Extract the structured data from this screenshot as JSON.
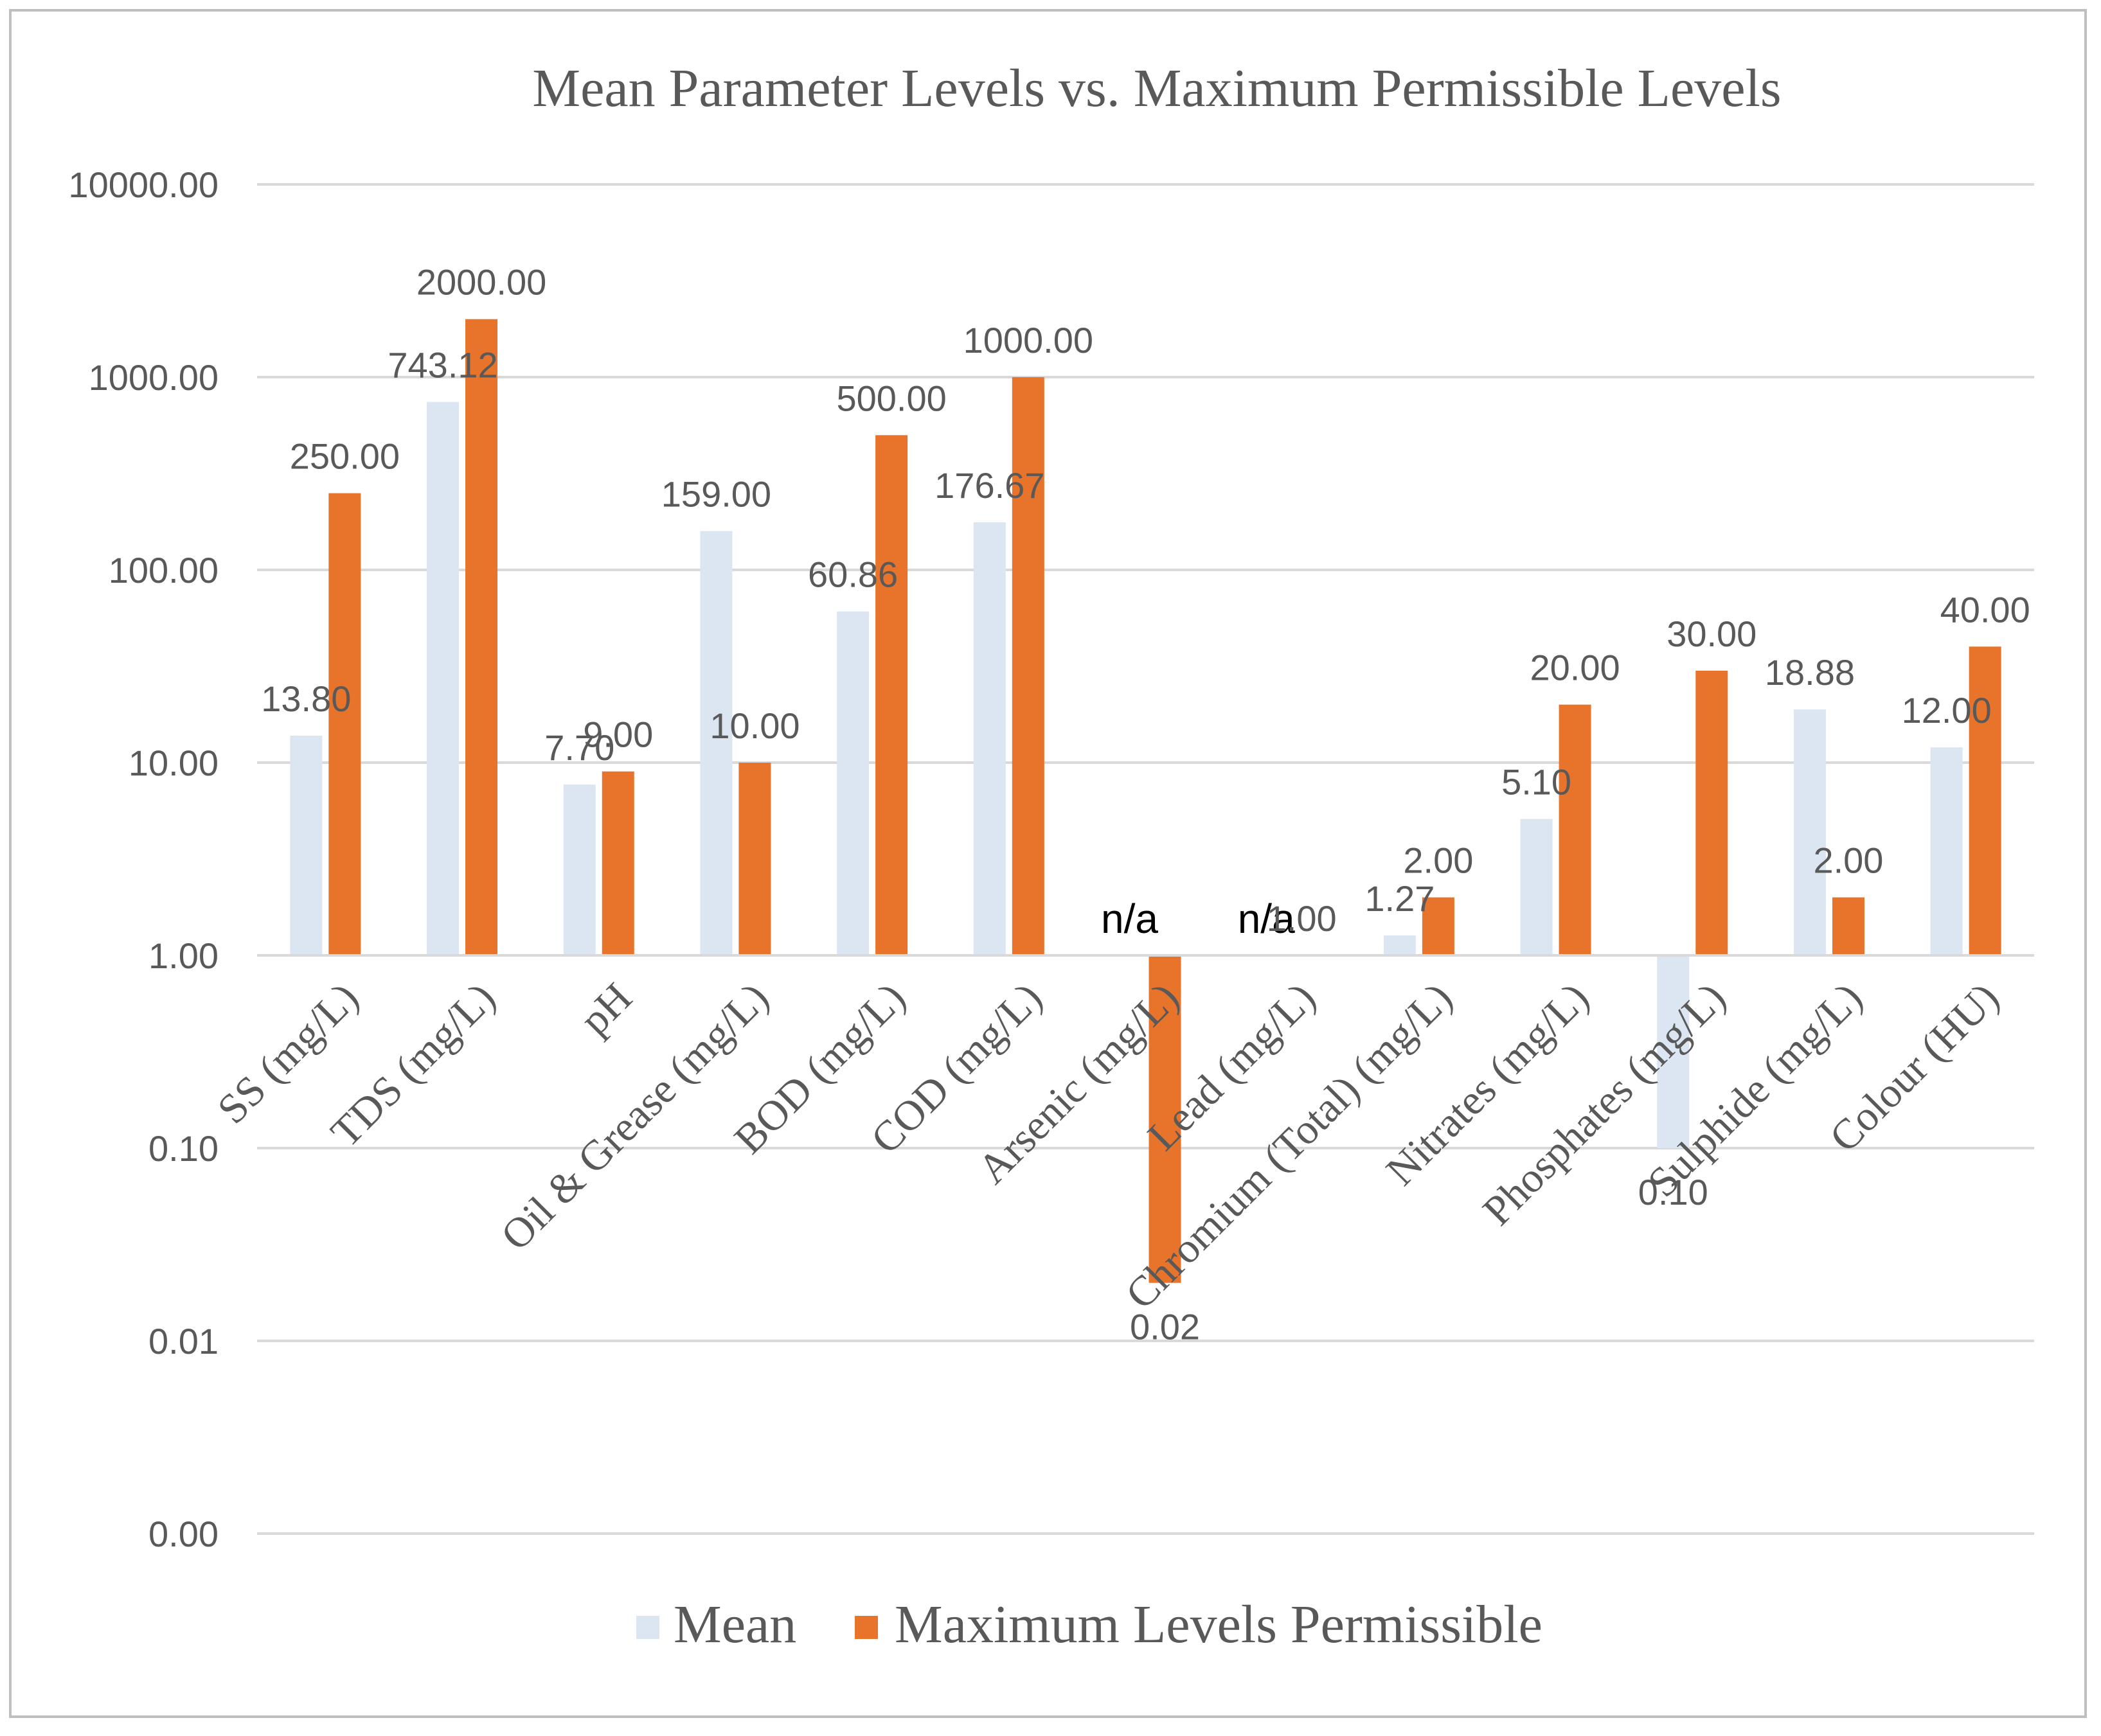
{
  "chart_data": {
    "type": "bar",
    "title": "Mean Parameter Levels vs. Maximum Permissible Levels",
    "yscale": "log",
    "ylim": [
      0.001,
      10000
    ],
    "y_ticks": [
      {
        "value": 10000,
        "label": "10000.00"
      },
      {
        "value": 1000,
        "label": "1000.00"
      },
      {
        "value": 100,
        "label": "100.00"
      },
      {
        "value": 10,
        "label": "10.00"
      },
      {
        "value": 1,
        "label": "1.00"
      },
      {
        "value": 0.1,
        "label": "0.10"
      },
      {
        "value": 0.01,
        "label": "0.01"
      },
      {
        "value": 0.001,
        "label": "0.00"
      }
    ],
    "categories": [
      "SS (mg/L)",
      "TDS (mg/L)",
      "pH",
      "Oil & Grease (mg/L)",
      "BOD (mg/L)",
      "COD (mg/L)",
      "Arsenic (mg/L)",
      "Lead (mg/L)",
      "Chromium (Total) (mg/L)",
      "Nitrates (mg/L)",
      "Phosphates (mg/L)",
      "Sulphide (mg/L)",
      "Colour (HU)"
    ],
    "series": [
      {
        "name": "Mean",
        "color": "#dce6f2",
        "values": [
          13.8,
          743.12,
          7.7,
          159.0,
          60.86,
          176.67,
          null,
          null,
          1.27,
          5.1,
          0.1,
          18.88,
          12.0
        ],
        "labels": [
          "13.80",
          "743.12",
          "7.70",
          "159.00",
          "60.86",
          "176.67",
          "n/a",
          "n/a",
          "1.27",
          "5.10",
          "0.10",
          "18.88",
          "12.00"
        ]
      },
      {
        "name": "Maximum Levels Permissible",
        "color": "#e8732a",
        "values": [
          250.0,
          2000.0,
          9.0,
          10.0,
          500.0,
          1000.0,
          0.02,
          1.0,
          2.0,
          20.0,
          30.0,
          2.0,
          40.0
        ],
        "labels": [
          "250.00",
          "2000.00",
          "9.00",
          "10.00",
          "500.00",
          "1000.00",
          "0.02",
          "1.00",
          "2.00",
          "20.00",
          "30.00",
          "2.00",
          "40.00"
        ]
      }
    ],
    "legend": {
      "position": "bottom"
    },
    "grid": true
  }
}
